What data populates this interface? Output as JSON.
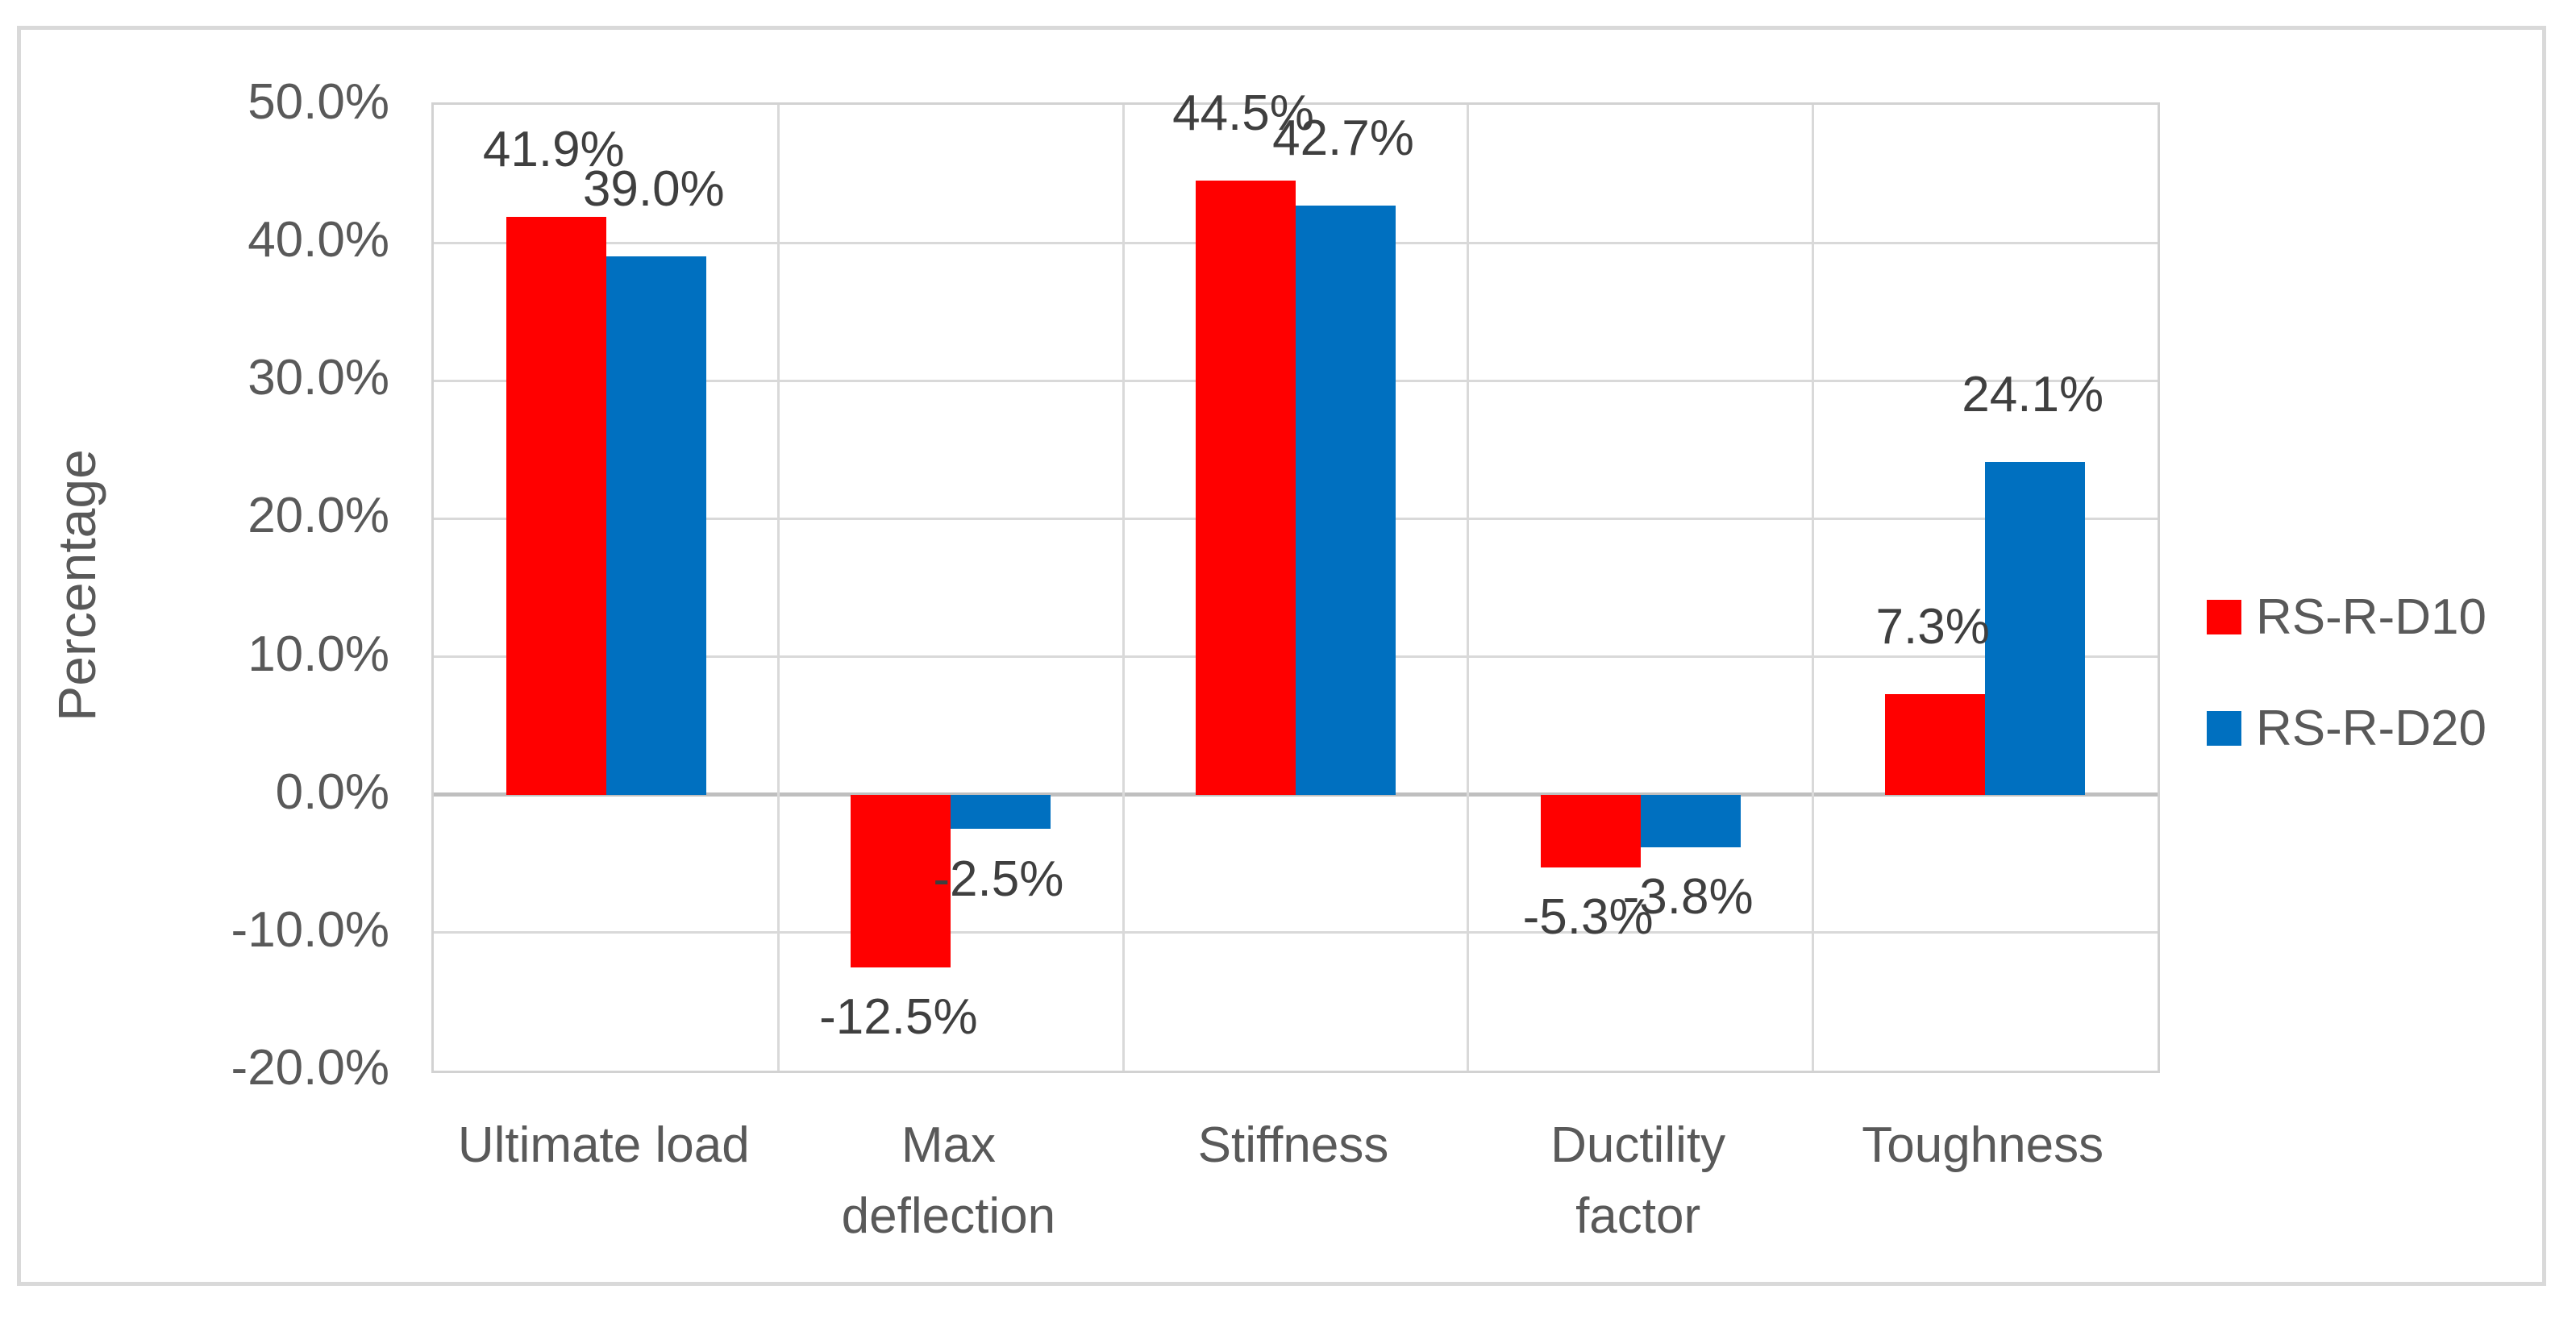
{
  "chart_data": {
    "type": "bar",
    "title": "",
    "xlabel": "",
    "ylabel": "Percentage",
    "categories": [
      "Ultimate load",
      "Max deflection",
      "Stiffness",
      "Ductility factor",
      "Toughness"
    ],
    "category_lines": [
      [
        "Ultimate load"
      ],
      [
        "Max",
        "deflection"
      ],
      [
        "Stiffness"
      ],
      [
        "Ductility",
        "factor"
      ],
      [
        "Toughness"
      ]
    ],
    "series": [
      {
        "name": "RS-R-D10",
        "color": "#FF0000",
        "values": [
          41.9,
          -12.5,
          44.5,
          -5.3,
          7.3
        ],
        "labels": [
          "41.9%",
          "-12.5%",
          "44.5%",
          "-5.3%",
          "7.3%"
        ]
      },
      {
        "name": "RS-R-D20",
        "color": "#0070C0",
        "values": [
          39.0,
          -2.5,
          42.7,
          -3.8,
          24.1
        ],
        "labels": [
          "39.0%",
          "-2.5%",
          "42.7%",
          "-3.8%",
          "24.1%"
        ]
      }
    ],
    "y_axis": {
      "min": -20,
      "max": 50,
      "step": 10,
      "tick_labels": [
        "50.0%",
        "40.0%",
        "30.0%",
        "20.0%",
        "10.0%",
        "0.0%",
        "-10.0%",
        "-20.0%"
      ]
    },
    "legend": {
      "position": "right",
      "entries": [
        "RS-R-D10",
        "RS-R-D20"
      ]
    },
    "grid": true,
    "colors": {
      "gridline": "#D9D9D9",
      "zero_line": "#BFBFBF",
      "plot_border": "#D2D2D2",
      "outer_border": "#D9D9D9",
      "axis_text": "#595959",
      "data_label_text": "#3F3F3F"
    }
  }
}
